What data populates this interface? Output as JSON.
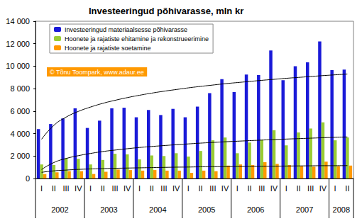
{
  "chart_data": {
    "type": "bar",
    "title": "Investeeringud põhivarasse, mln kr",
    "annotations": [
      "© Tõnu Toompark, www.adaur.ee"
    ],
    "categories": [
      "I",
      "II",
      "III",
      "IV",
      "I",
      "II",
      "III",
      "IV",
      "I",
      "II",
      "III",
      "IV",
      "I",
      "II",
      "III",
      "IV",
      "I",
      "II",
      "III",
      "IV",
      "I",
      "II",
      "III",
      "IV",
      "I",
      "II"
    ],
    "year_groups": [
      {
        "label": "2002",
        "quarters": 4
      },
      {
        "label": "2003",
        "quarters": 4
      },
      {
        "label": "2004",
        "quarters": 4
      },
      {
        "label": "2005",
        "quarters": 4
      },
      {
        "label": "2006",
        "quarters": 4
      },
      {
        "label": "2007",
        "quarters": 4
      },
      {
        "label": "2008",
        "quarters": 2
      }
    ],
    "series": [
      {
        "name": "Investeeringud materiaalsesse põhivarasse",
        "color": "#1a1ad8",
        "values": [
          4400,
          4850,
          5350,
          6250,
          4500,
          5150,
          6250,
          6300,
          5450,
          6100,
          5650,
          6200,
          5450,
          6400,
          7600,
          8850,
          7700,
          9250,
          9200,
          11400,
          8750,
          10000,
          10350,
          12200,
          9650,
          9700
        ],
        "trend": [
          3500,
          4730,
          5460,
          5970,
          6360,
          6690,
          6960,
          7200,
          7410,
          7600,
          7770,
          7920,
          8070,
          8200,
          8320,
          8440,
          8540,
          8640,
          8740,
          8830,
          8920,
          9000,
          9080,
          9160,
          9230,
          9300
        ]
      },
      {
        "name": "Hoonete ja rajatiste ehitamine ja rekonstrueerimine",
        "color": "#99cc33",
        "values": [
          1250,
          1200,
          1800,
          1750,
          1250,
          1650,
          2200,
          2150,
          1700,
          2050,
          2000,
          2250,
          1950,
          2450,
          3400,
          3650,
          2250,
          3200,
          3450,
          4300,
          2950,
          4100,
          4450,
          5000,
          3400,
          3650
        ],
        "trend": [
          800,
          1420,
          1780,
          2030,
          2230,
          2400,
          2530,
          2650,
          2760,
          2850,
          2930,
          3010,
          3080,
          3150,
          3210,
          3270,
          3320,
          3370,
          3420,
          3470,
          3510,
          3550,
          3590,
          3630,
          3670,
          3700
        ]
      },
      {
        "name": "Hoonete ja rajatiste soetamine",
        "color": "#ff9900",
        "values": [
          400,
          550,
          650,
          650,
          400,
          600,
          800,
          750,
          700,
          750,
          700,
          700,
          500,
          700,
          650,
          1150,
          1250,
          1200,
          1450,
          1300,
          1200,
          1100,
          1050,
          1500,
          1100,
          1150
        ],
        "trend": [
          550,
          680,
          750,
          810,
          850,
          880,
          910,
          930,
          950,
          970,
          990,
          1010,
          1020,
          1040,
          1050,
          1060,
          1070,
          1080,
          1090,
          1100,
          1110,
          1120,
          1130,
          1140,
          1140,
          1150
        ]
      }
    ],
    "ylim": [
      0,
      14000
    ],
    "yticks": [
      0,
      {
        "value": 2000,
        "label": "2 000"
      },
      {
        "value": 4000,
        "label": "4 000"
      },
      {
        "value": 6000,
        "label": "6 000"
      },
      {
        "value": 8000,
        "label": "8 000"
      },
      {
        "value": 10000,
        "label": "10 000"
      },
      {
        "value": 12000,
        "label": "12 000"
      },
      {
        "value": 14000,
        "label": "14 000"
      }
    ],
    "grid": false,
    "legend": "top-left"
  }
}
